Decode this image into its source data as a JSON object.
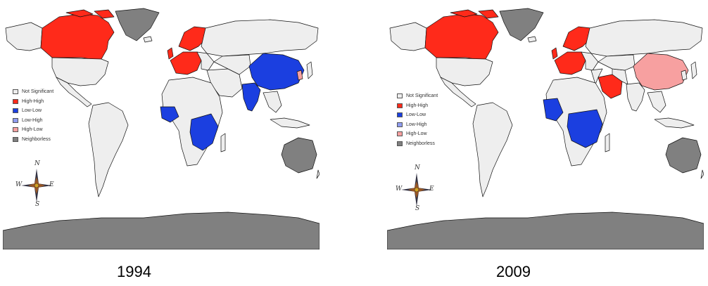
{
  "legend": {
    "items": [
      {
        "label": "Not Significant",
        "color": "#eeeeee"
      },
      {
        "label": "High-High",
        "color": "#ff2a1a"
      },
      {
        "label": "Low-Low",
        "color": "#1b3fe0"
      },
      {
        "label": "Low-High",
        "color": "#8f9cf0"
      },
      {
        "label": "High-Low",
        "color": "#f7a0a0"
      },
      {
        "label": "Neighborless",
        "color": "#808080"
      }
    ]
  },
  "compass": {
    "n": "N",
    "s": "S",
    "e": "E",
    "w": "W"
  },
  "maps": [
    {
      "year": "1994",
      "high_high": [
        "Canada",
        "Scandinavia",
        "Western Europe"
      ],
      "low_low": [
        "China",
        "India",
        "West Africa",
        "East Africa"
      ],
      "high_low": [
        "Korea"
      ]
    },
    {
      "year": "2009",
      "high_high": [
        "Canada",
        "Scandinavia",
        "Western Europe",
        "Saudi Arabia"
      ],
      "low_low": [
        "West Africa",
        "East Africa"
      ],
      "high_low": [
        "China"
      ]
    }
  ],
  "colors": {
    "land": "#eeeeee",
    "border": "#111111",
    "neighborless": "#808080",
    "high_high": "#ff2a1a",
    "low_low": "#1b3fe0",
    "high_low": "#f7a0a0"
  }
}
